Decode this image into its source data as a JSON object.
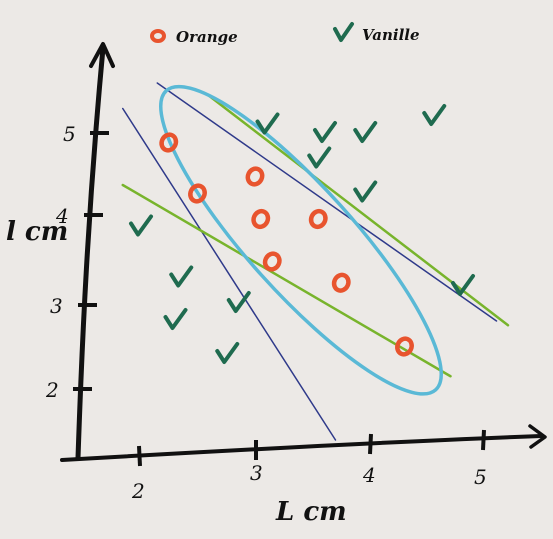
{
  "chart_data": {
    "type": "scatter",
    "xlabel": "L cm",
    "ylabel": "l cm",
    "xlim": [
      1.4,
      5.6
    ],
    "ylim": [
      1.3,
      5.9
    ],
    "x_ticks": [
      "2",
      "3",
      "4",
      "5"
    ],
    "y_ticks": [
      "2",
      "3",
      "4",
      "5"
    ],
    "legend_position": "top",
    "series": [
      {
        "name": "Orange",
        "marker": "o",
        "color": "#e8542e",
        "points": [
          [
            2.25,
            4.9
          ],
          [
            2.5,
            4.3
          ],
          [
            3.0,
            4.5
          ],
          [
            3.05,
            4.0
          ],
          [
            3.55,
            4.0
          ],
          [
            3.15,
            3.5
          ],
          [
            3.75,
            3.25
          ],
          [
            4.3,
            2.5
          ]
        ]
      },
      {
        "name": "Vanille",
        "marker": "check",
        "color": "#1f6b4f",
        "points": [
          [
            3.1,
            5.1
          ],
          [
            3.6,
            5.0
          ],
          [
            3.95,
            5.0
          ],
          [
            4.55,
            5.2
          ],
          [
            3.55,
            4.7
          ],
          [
            3.95,
            4.3
          ],
          [
            2.0,
            3.9
          ],
          [
            2.35,
            3.3
          ],
          [
            2.85,
            3.0
          ],
          [
            2.3,
            2.8
          ],
          [
            2.75,
            2.4
          ],
          [
            4.8,
            3.2
          ]
        ]
      }
    ],
    "annotations": [
      {
        "kind": "line",
        "color": "#2f3a8a",
        "from": [
          1.85,
          5.3
        ],
        "to": [
          3.7,
          1.4
        ]
      },
      {
        "kind": "line",
        "color": "#2f3a8a",
        "from": [
          2.15,
          5.6
        ],
        "to": [
          5.1,
          2.8
        ]
      },
      {
        "kind": "line",
        "color": "#78b42c",
        "from": [
          1.85,
          4.4
        ],
        "to": [
          4.7,
          2.15
        ]
      },
      {
        "kind": "line",
        "color": "#78b42c",
        "from": [
          2.6,
          5.45
        ],
        "to": [
          5.2,
          2.75
        ]
      },
      {
        "kind": "ellipse",
        "color": "#5ab9d6",
        "center": [
          3.4,
          3.75
        ],
        "rx": 1.75,
        "ry": 0.62,
        "angle_deg": -48
      }
    ]
  }
}
